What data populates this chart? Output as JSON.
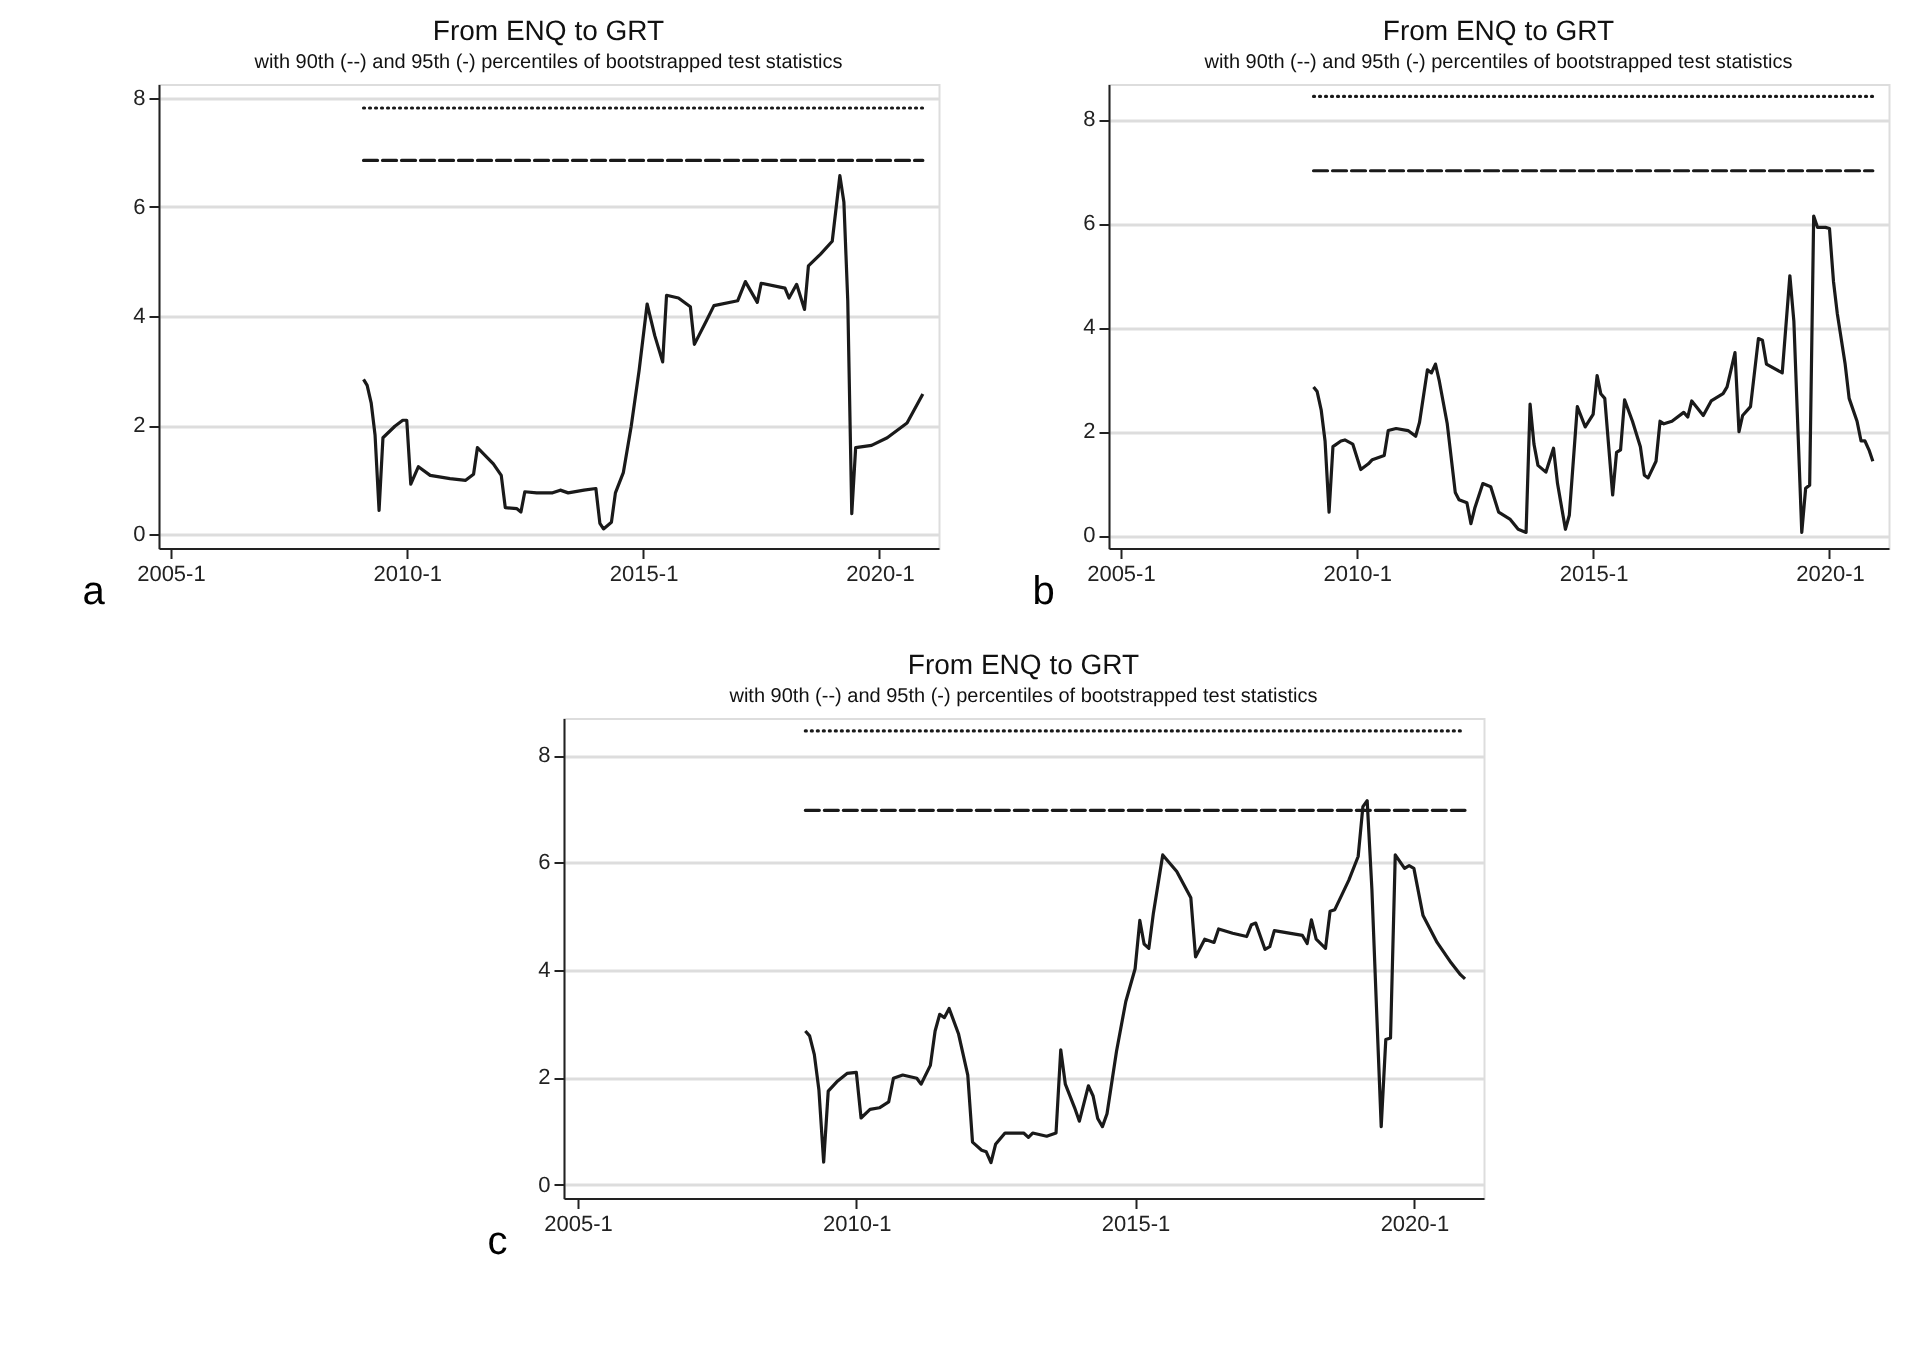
{
  "chart_data": [
    {
      "type": "line",
      "title": "From ENQ to GRT",
      "subtitle": "with 90th (--) and 95th (-) percentiles of bootstrapped test statistics",
      "annotations": [
        "a"
      ],
      "xlim": [
        "2004-10",
        "2021-04"
      ],
      "xticks": [
        {
          "value": "2005-01",
          "label": "2005-1"
        },
        {
          "value": "2010-01",
          "label": "2010-1"
        },
        {
          "value": "2015-01",
          "label": "2015-1"
        },
        {
          "value": "2020-01",
          "label": "2020-1"
        }
      ],
      "ylim": [
        -0.25,
        8.25
      ],
      "yticks": [
        0,
        2,
        4,
        6,
        8
      ],
      "grid": "y",
      "series": [
        {
          "color": "#1a1a1a",
          "line_style": "solid",
          "x": [
            "2009-02",
            "2009-03",
            "2009-04",
            "2009-05",
            "2009-06",
            "2009-07",
            "2009-10",
            "2009-12",
            "2010-01",
            "2010-02",
            "2010-04",
            "2010-07",
            "2010-12",
            "2011-04",
            "2011-06",
            "2011-07",
            "2011-11",
            "2012-01",
            "2012-02",
            "2012-05",
            "2012-06",
            "2012-07",
            "2012-10",
            "2013-02",
            "2013-04",
            "2013-06",
            "2013-10",
            "2014-01",
            "2014-02",
            "2014-03",
            "2014-05",
            "2014-06",
            "2014-08",
            "2014-10",
            "2014-12",
            "2015-02",
            "2015-04",
            "2015-06",
            "2015-07",
            "2015-10",
            "2016-01",
            "2016-02",
            "2016-05",
            "2016-07",
            "2017-01",
            "2017-03",
            "2017-06",
            "2017-07",
            "2018-01",
            "2018-02",
            "2018-04",
            "2018-06",
            "2018-07",
            "2018-10",
            "2019-01",
            "2019-03",
            "2019-04",
            "2019-05",
            "2019-06",
            "2019-07",
            "2019-11",
            "2020-03",
            "2020-08",
            "2020-12"
          ],
          "values": [
            2.84,
            2.73,
            2.41,
            1.82,
            0.44,
            1.77,
            1.98,
            2.09,
            2.09,
            0.92,
            1.24,
            1.08,
            1.02,
            0.99,
            1.1,
            1.59,
            1.29,
            1.08,
            0.49,
            0.47,
            0.41,
            0.78,
            0.76,
            0.76,
            0.81,
            0.76,
            0.81,
            0.84,
            0.2,
            0.1,
            0.22,
            0.76,
            1.13,
            1.98,
            3.0,
            4.22,
            3.64,
            3.16,
            4.38,
            4.33,
            4.17,
            3.48,
            3.9,
            4.19,
            4.28,
            4.63,
            4.25,
            4.6,
            4.51,
            4.33,
            4.58,
            4.12,
            4.92,
            5.13,
            5.37,
            6.57,
            6.09,
            4.28,
            0.38,
            1.59,
            1.63,
            1.77,
            2.04,
            2.57
          ]
        },
        {
          "color": "#1a1a1a",
          "line_style": "dotted",
          "x": [
            "2009-02",
            "2020-12"
          ],
          "values": [
            7.81,
            7.81
          ]
        },
        {
          "color": "#1a1a1a",
          "line_style": "dashed",
          "x": [
            "2009-02",
            "2020-12"
          ],
          "values": [
            6.85,
            6.85
          ]
        }
      ]
    },
    {
      "type": "line",
      "title": "From ENQ to GRT",
      "subtitle": "with 90th (--) and 95th (-) percentiles of bootstrapped test statistics",
      "annotations": [
        "b"
      ],
      "xlim": [
        "2004-10",
        "2021-04"
      ],
      "xticks": [
        {
          "value": "2005-01",
          "label": "2005-1"
        },
        {
          "value": "2010-01",
          "label": "2010-1"
        },
        {
          "value": "2015-01",
          "label": "2015-1"
        },
        {
          "value": "2020-01",
          "label": "2020-1"
        }
      ],
      "ylim": [
        -0.25,
        8.68
      ],
      "yticks": [
        0,
        2,
        4,
        6,
        8
      ],
      "grid": "y",
      "series": [
        {
          "color": "#1a1a1a",
          "line_style": "solid",
          "x": [
            "2009-02",
            "2009-03",
            "2009-04",
            "2009-05",
            "2009-06",
            "2009-07",
            "2009-09",
            "2009-10",
            "2009-12",
            "2010-02",
            "2010-04",
            "2010-05",
            "2010-08",
            "2010-09",
            "2010-11",
            "2011-02",
            "2011-04",
            "2011-05",
            "2011-07",
            "2011-08",
            "2011-09",
            "2011-10",
            "2011-12",
            "2012-02",
            "2012-03",
            "2012-05",
            "2012-06",
            "2012-07",
            "2012-09",
            "2012-11",
            "2013-01",
            "2013-04",
            "2013-06",
            "2013-08",
            "2013-09",
            "2013-10",
            "2013-11",
            "2014-01",
            "2014-03",
            "2014-04",
            "2014-06",
            "2014-07",
            "2014-09",
            "2014-11",
            "2015-01",
            "2015-02",
            "2015-03",
            "2015-04",
            "2015-06",
            "2015-07",
            "2015-08",
            "2015-09",
            "2015-11",
            "2016-01",
            "2016-02",
            "2016-03",
            "2016-05",
            "2016-06",
            "2016-07",
            "2016-09",
            "2016-12",
            "2017-01",
            "2017-02",
            "2017-05",
            "2017-07",
            "2017-10",
            "2017-11",
            "2018-01",
            "2018-02",
            "2018-03",
            "2018-05",
            "2018-07",
            "2018-08",
            "2018-09",
            "2019-01",
            "2019-03",
            "2019-04",
            "2019-06",
            "2019-07",
            "2019-08",
            "2019-09",
            "2019-10",
            "2019-12",
            "2020-01",
            "2020-02",
            "2020-03",
            "2020-05",
            "2020-06",
            "2020-08",
            "2020-09",
            "2020-10",
            "2020-11",
            "2020-12"
          ],
          "values": [
            2.85,
            2.76,
            2.41,
            1.81,
            0.44,
            1.7,
            1.81,
            1.83,
            1.75,
            1.26,
            1.37,
            1.45,
            1.53,
            2.01,
            2.05,
            2.01,
            1.9,
            2.17,
            3.18,
            3.12,
            3.29,
            2.96,
            2.14,
            0.82,
            0.68,
            0.62,
            0.22,
            0.52,
            0.99,
            0.93,
            0.44,
            0.3,
            0.11,
            0.05,
            2.52,
            1.75,
            1.34,
            1.21,
            1.67,
            0.99,
            0.11,
            0.38,
            2.47,
            2.08,
            2.32,
            3.07,
            2.72,
            2.63,
            0.77,
            1.59,
            1.64,
            2.6,
            2.19,
            1.7,
            1.15,
            1.1,
            1.42,
            2.19,
            2.14,
            2.19,
            2.36,
            2.27,
            2.58,
            2.3,
            2.58,
            2.72,
            2.85,
            3.51,
            1.99,
            2.3,
            2.47,
            3.78,
            3.75,
            3.29,
            3.12,
            4.99,
            4.11,
            0.05,
            0.9,
            0.96,
            6.14,
            5.92,
            5.92,
            5.9,
            4.88,
            4.27,
            3.29,
            2.63,
            2.19,
            1.81,
            1.81,
            1.64,
            1.42
          ]
        },
        {
          "color": "#1a1a1a",
          "line_style": "dotted",
          "x": [
            "2009-02",
            "2020-12"
          ],
          "values": [
            8.44,
            8.44
          ]
        },
        {
          "color": "#1a1a1a",
          "line_style": "dashed",
          "x": [
            "2009-02",
            "2020-12"
          ],
          "values": [
            7.01,
            7.01
          ]
        }
      ]
    },
    {
      "type": "line",
      "title": "From ENQ to GRT",
      "subtitle": "with 90th (--) and 95th (-) percentiles of bootstrapped test statistics",
      "annotations": [
        "c"
      ],
      "xlim": [
        "2004-10",
        "2021-04"
      ],
      "xticks": [
        {
          "value": "2005-01",
          "label": "2005-1"
        },
        {
          "value": "2010-01",
          "label": "2010-1"
        },
        {
          "value": "2015-01",
          "label": "2015-1"
        },
        {
          "value": "2020-01",
          "label": "2020-1"
        }
      ],
      "ylim": [
        -0.25,
        8.69
      ],
      "yticks": [
        0,
        2,
        4,
        6,
        8
      ],
      "grid": "y",
      "series": [
        {
          "color": "#1a1a1a",
          "line_style": "solid",
          "x": [
            "2009-02",
            "2009-03",
            "2009-04",
            "2009-05",
            "2009-06",
            "2009-07",
            "2009-09",
            "2009-11",
            "2010-01",
            "2010-02",
            "2010-04",
            "2010-06",
            "2010-08",
            "2010-09",
            "2010-11",
            "2011-02",
            "2011-03",
            "2011-05",
            "2011-06",
            "2011-07",
            "2011-08",
            "2011-09",
            "2011-11",
            "2012-01",
            "2012-02",
            "2012-04",
            "2012-05",
            "2012-06",
            "2012-07",
            "2012-09",
            "2013-01",
            "2013-02",
            "2013-03",
            "2013-06",
            "2013-08",
            "2013-09",
            "2013-10",
            "2013-12",
            "2014-01",
            "2014-03",
            "2014-04",
            "2014-05",
            "2014-06",
            "2014-07",
            "2014-09",
            "2014-11",
            "2015-01",
            "2015-02",
            "2015-03",
            "2015-04",
            "2015-05",
            "2015-07",
            "2015-10",
            "2016-01",
            "2016-02",
            "2016-04",
            "2016-06",
            "2016-07",
            "2016-10",
            "2017-01",
            "2017-02",
            "2017-03",
            "2017-05",
            "2017-06",
            "2017-07",
            "2018-01",
            "2018-02",
            "2018-03",
            "2018-04",
            "2018-06",
            "2018-07",
            "2018-08",
            "2018-11",
            "2019-01",
            "2019-02",
            "2019-03",
            "2019-04",
            "2019-05",
            "2019-06",
            "2019-07",
            "2019-08",
            "2019-09",
            "2019-11",
            "2019-12",
            "2020-01",
            "2020-03",
            "2020-06",
            "2020-09",
            "2020-11",
            "2020-12"
          ],
          "values": [
            2.86,
            2.77,
            2.42,
            1.76,
            0.42,
            1.74,
            1.93,
            2.07,
            2.09,
            1.24,
            1.4,
            1.43,
            1.54,
            1.98,
            2.04,
            1.98,
            1.87,
            2.22,
            2.86,
            3.17,
            3.11,
            3.28,
            2.81,
            2.04,
            0.79,
            0.64,
            0.61,
            0.41,
            0.75,
            0.96,
            0.96,
            0.88,
            0.96,
            0.9,
            0.96,
            2.51,
            1.87,
            1.43,
            1.18,
            1.84,
            1.65,
            1.23,
            1.08,
            1.32,
            2.48,
            3.41,
            4.02,
            4.92,
            4.48,
            4.4,
            5.06,
            6.14,
            5.83,
            5.34,
            4.24,
            4.57,
            4.51,
            4.76,
            4.68,
            4.62,
            4.84,
            4.87,
            4.38,
            4.43,
            4.73,
            4.64,
            4.49,
            4.93,
            4.57,
            4.4,
            5.09,
            5.12,
            5.67,
            6.11,
            7.04,
            7.15,
            5.5,
            3.3,
            1.08,
            2.7,
            2.73,
            6.14,
            5.89,
            5.94,
            5.89,
            5.01,
            4.51,
            4.13,
            3.91,
            3.83
          ]
        },
        {
          "color": "#1a1a1a",
          "line_style": "dotted",
          "x": [
            "2009-02",
            "2020-12"
          ],
          "values": [
            8.45,
            8.45
          ]
        },
        {
          "color": "#1a1a1a",
          "line_style": "dashed",
          "x": [
            "2009-02",
            "2020-12"
          ],
          "values": [
            6.97,
            6.97
          ]
        }
      ]
    }
  ]
}
